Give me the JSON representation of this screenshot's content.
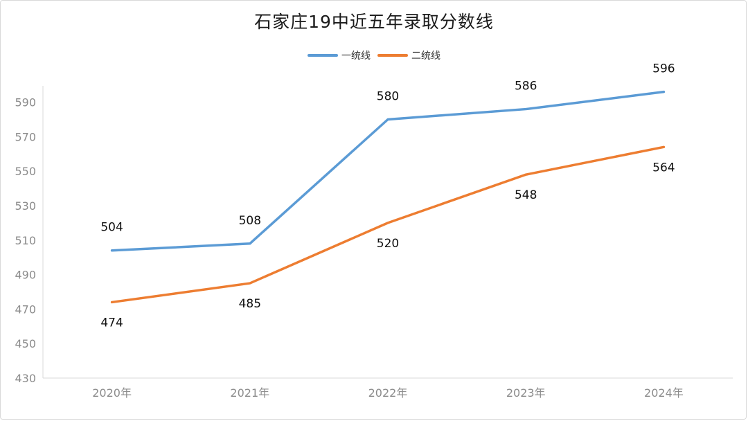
{
  "title": "石家庄19中近五年录取分数线",
  "colors": {
    "series1": "#5b9bd5",
    "series2": "#ed7d31",
    "axis": "#d9d9d9",
    "gridline": "#d9d9d9"
  },
  "chart_data": {
    "type": "line",
    "title": "石家庄19中近五年录取分数线",
    "categories": [
      "2020年",
      "2021年",
      "2022年",
      "2023年",
      "2024年"
    ],
    "series": [
      {
        "name": "一统线",
        "values": [
          504,
          508,
          580,
          586,
          596
        ]
      },
      {
        "name": "二统线",
        "values": [
          474,
          485,
          520,
          548,
          564
        ]
      }
    ],
    "yticks": [
      430,
      450,
      470,
      490,
      510,
      530,
      550,
      570,
      590
    ],
    "ylim": [
      430,
      600
    ],
    "xlabel": "",
    "ylabel": "",
    "legend": "top-center",
    "grid": "vertical drop lines at categories"
  }
}
